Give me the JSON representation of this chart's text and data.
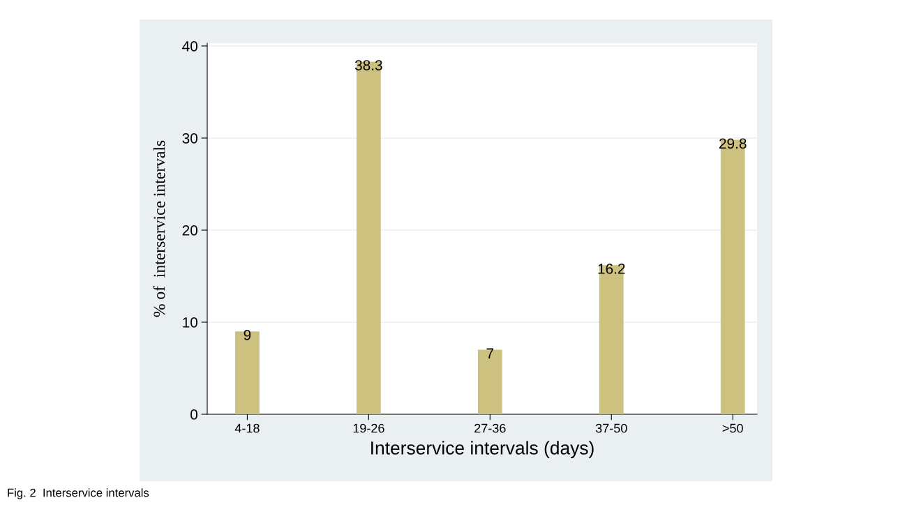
{
  "chart_data": {
    "type": "bar",
    "xlabel": "Interservice intervals (days)",
    "ylabel": "% of  interservice intervals",
    "categories": [
      "4-18",
      "19-26",
      "27-36",
      "37-50",
      ">50"
    ],
    "values": [
      9,
      38.3,
      7,
      16.2,
      29.8
    ],
    "color": "#cdc17f",
    "ylim": [
      0,
      40.3
    ],
    "yticks": [
      0,
      10,
      20,
      30,
      40
    ],
    "grid": "y",
    "data_labels": true,
    "annotations": [
      "Fig. 2  Interservice intervals"
    ]
  }
}
